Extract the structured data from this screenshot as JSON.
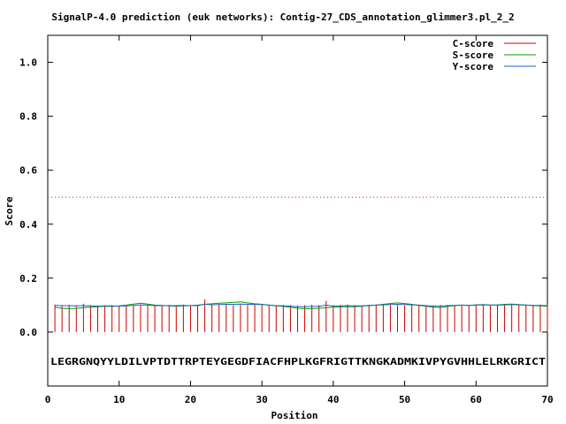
{
  "chart_data": {
    "type": "line",
    "title": "SignalP-4.0 prediction (euk networks): Contig-27_CDS_annotation_glimmer3.pl_2_2",
    "xlabel": "Position",
    "ylabel": "Score",
    "xlim": [
      0,
      70
    ],
    "ylim": [
      -0.2,
      1.1
    ],
    "xticks": [
      "0",
      "10",
      "20",
      "30",
      "40",
      "50",
      "60",
      "70"
    ],
    "yticks": [
      "0.0",
      "0.2",
      "0.4",
      "0.6",
      "0.8",
      "1.0"
    ],
    "xtick_values": [
      0,
      10,
      20,
      30,
      40,
      50,
      60,
      70
    ],
    "ytick_values": [
      0.0,
      0.2,
      0.4,
      0.6,
      0.8,
      1.0
    ],
    "threshold": 0.5,
    "sequence": "LEGRGNQYYLDILVPTDTTRPTEYGEGDFIACFHPLKGFRIGTTKNGKADMKIVPYGVHHLELRKGRICT",
    "legend_position": "top-right",
    "colors": {
      "c_score": "#cc0000",
      "s_score": "#00a000",
      "y_score": "#2060c0",
      "threshold": "#cc00cc"
    },
    "series": [
      {
        "name": "C-score",
        "style": "impulses",
        "x": [
          1,
          2,
          3,
          4,
          5,
          6,
          7,
          8,
          9,
          10,
          11,
          12,
          13,
          14,
          15,
          16,
          17,
          18,
          19,
          20,
          21,
          22,
          23,
          24,
          25,
          26,
          27,
          28,
          29,
          30,
          31,
          32,
          33,
          34,
          35,
          36,
          37,
          38,
          39,
          40,
          41,
          42,
          43,
          44,
          45,
          46,
          47,
          48,
          49,
          50,
          51,
          52,
          53,
          54,
          55,
          56,
          57,
          58,
          59,
          60,
          61,
          62,
          63,
          64,
          65,
          66,
          67,
          68,
          69,
          70
        ],
        "values": [
          0.102,
          0.1,
          0.101,
          0.099,
          0.105,
          0.1,
          0.098,
          0.099,
          0.1,
          0.098,
          0.099,
          0.1,
          0.101,
          0.1,
          0.099,
          0.1,
          0.101,
          0.1,
          0.102,
          0.1,
          0.099,
          0.121,
          0.1,
          0.101,
          0.102,
          0.1,
          0.101,
          0.1,
          0.102,
          0.1,
          0.099,
          0.1,
          0.101,
          0.1,
          0.099,
          0.1,
          0.101,
          0.1,
          0.116,
          0.1,
          0.101,
          0.102,
          0.1,
          0.099,
          0.101,
          0.102,
          0.1,
          0.101,
          0.1,
          0.099,
          0.1,
          0.101,
          0.1,
          0.099,
          0.1,
          0.101,
          0.1,
          0.101,
          0.1,
          0.101,
          0.102,
          0.1,
          0.101,
          0.1,
          0.101,
          0.1,
          0.101,
          0.1,
          0.102,
          0.1
        ]
      },
      {
        "name": "S-score",
        "style": "line",
        "x": [
          1,
          2,
          3,
          4,
          5,
          6,
          7,
          8,
          9,
          10,
          11,
          12,
          13,
          14,
          15,
          16,
          17,
          18,
          19,
          20,
          21,
          22,
          23,
          24,
          25,
          26,
          27,
          28,
          29,
          30,
          31,
          32,
          33,
          34,
          35,
          36,
          37,
          38,
          39,
          40,
          41,
          42,
          43,
          44,
          45,
          46,
          47,
          48,
          49,
          50,
          51,
          52,
          53,
          54,
          55,
          56,
          57,
          58,
          59,
          60,
          61,
          62,
          63,
          64,
          65,
          66,
          67,
          68,
          69,
          70
        ],
        "values": [
          0.092,
          0.088,
          0.087,
          0.088,
          0.09,
          0.092,
          0.094,
          0.096,
          0.095,
          0.097,
          0.1,
          0.104,
          0.107,
          0.104,
          0.1,
          0.099,
          0.097,
          0.096,
          0.097,
          0.098,
          0.1,
          0.103,
          0.105,
          0.107,
          0.108,
          0.11,
          0.112,
          0.108,
          0.105,
          0.103,
          0.1,
          0.097,
          0.095,
          0.092,
          0.088,
          0.087,
          0.087,
          0.088,
          0.09,
          0.092,
          0.093,
          0.094,
          0.094,
          0.096,
          0.098,
          0.1,
          0.103,
          0.106,
          0.108,
          0.106,
          0.103,
          0.099,
          0.096,
          0.092,
          0.091,
          0.095,
          0.098,
          0.1,
          0.099,
          0.101,
          0.102,
          0.1,
          0.101,
          0.103,
          0.104,
          0.102,
          0.1,
          0.098,
          0.097,
          0.096
        ]
      },
      {
        "name": "Y-score",
        "style": "line",
        "x": [
          1,
          2,
          3,
          4,
          5,
          6,
          7,
          8,
          9,
          10,
          11,
          12,
          13,
          14,
          15,
          16,
          17,
          18,
          19,
          20,
          21,
          22,
          23,
          24,
          25,
          26,
          27,
          28,
          29,
          30,
          31,
          32,
          33,
          34,
          35,
          36,
          37,
          38,
          39,
          40,
          41,
          42,
          43,
          44,
          45,
          46,
          47,
          48,
          49,
          50,
          51,
          52,
          53,
          54,
          55,
          56,
          57,
          58,
          59,
          60,
          61,
          62,
          63,
          64,
          65,
          66,
          67,
          68,
          69,
          70
        ],
        "values": [
          0.099,
          0.098,
          0.098,
          0.097,
          0.098,
          0.097,
          0.096,
          0.097,
          0.097,
          0.096,
          0.097,
          0.099,
          0.101,
          0.1,
          0.098,
          0.098,
          0.098,
          0.098,
          0.099,
          0.098,
          0.098,
          0.104,
          0.101,
          0.102,
          0.103,
          0.103,
          0.104,
          0.103,
          0.103,
          0.102,
          0.1,
          0.098,
          0.097,
          0.096,
          0.094,
          0.094,
          0.095,
          0.095,
          0.1,
          0.096,
          0.097,
          0.098,
          0.097,
          0.097,
          0.099,
          0.1,
          0.101,
          0.102,
          0.103,
          0.102,
          0.101,
          0.1,
          0.098,
          0.096,
          0.096,
          0.098,
          0.099,
          0.1,
          0.099,
          0.1,
          0.101,
          0.1,
          0.1,
          0.101,
          0.102,
          0.101,
          0.1,
          0.099,
          0.099,
          0.098
        ]
      }
    ]
  }
}
